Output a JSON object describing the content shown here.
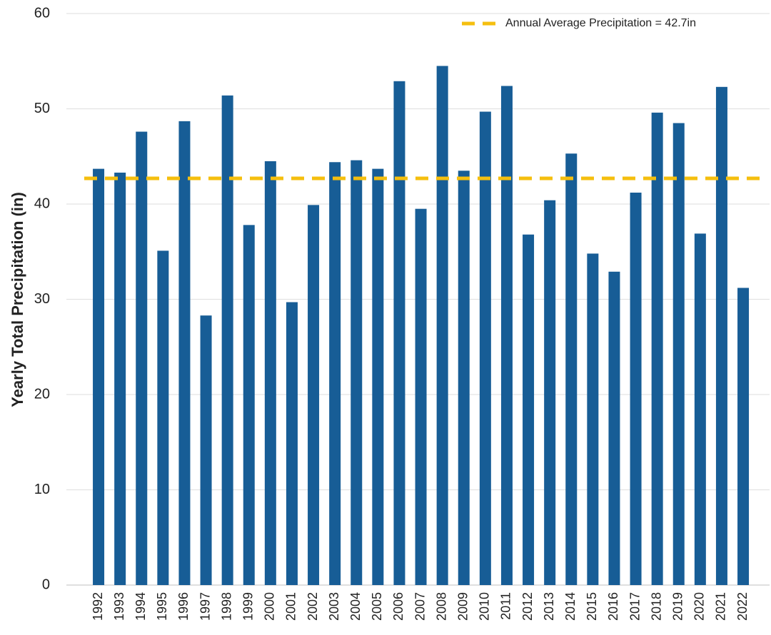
{
  "chart_data": {
    "type": "bar",
    "y_axis_label": "Yearly Total Precipitation (in)",
    "categories": [
      "1992",
      "1993",
      "1994",
      "1995",
      "1996",
      "1997",
      "1998",
      "1999",
      "2000",
      "2001",
      "2002",
      "2003",
      "2004",
      "2005",
      "2006",
      "2007",
      "2008",
      "2009",
      "2010",
      "2011",
      "2012",
      "2013",
      "2014",
      "2015",
      "2016",
      "2017",
      "2018",
      "2019",
      "2020",
      "2021",
      "2022"
    ],
    "values": [
      43.7,
      43.3,
      47.6,
      35.1,
      48.7,
      28.3,
      51.4,
      37.8,
      44.5,
      29.7,
      39.9,
      44.4,
      44.6,
      43.7,
      52.9,
      39.5,
      54.5,
      43.5,
      49.7,
      52.4,
      36.8,
      40.4,
      45.3,
      34.8,
      32.9,
      41.2,
      49.6,
      48.5,
      36.9,
      52.3,
      31.2
    ],
    "color": "#175d96",
    "ylim": [
      0,
      60
    ],
    "yticks": [
      0,
      10,
      20,
      30,
      40,
      50,
      60
    ],
    "grid": true,
    "average": {
      "label": "Annual Average Precipitation = 42.7in",
      "value": 42.7,
      "color": "#f5bf0f"
    },
    "legend_position": "upper right"
  }
}
